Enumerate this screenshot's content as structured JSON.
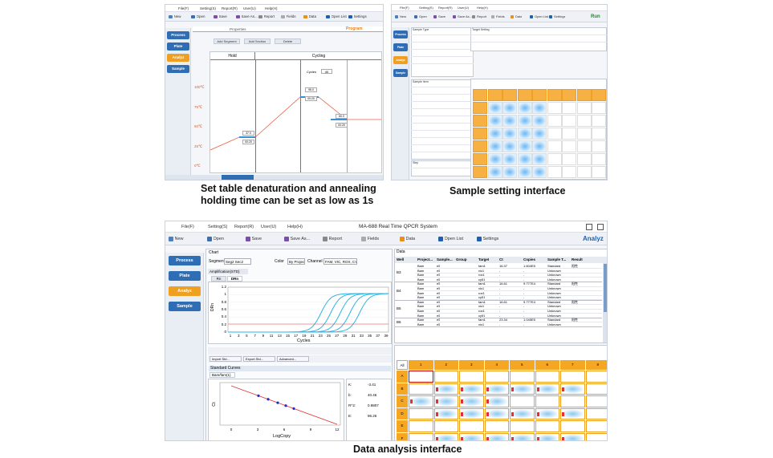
{
  "captions": {
    "program": [
      "Set table denaturation and annealing",
      "holding time can be set as low as 1s"
    ],
    "sample": "Sample setting interface",
    "analysis": "Data analysis interface"
  },
  "menu": [
    "File(F)",
    "Setting(S)",
    "Report(R)",
    "User(U)",
    "Help(H)"
  ],
  "toolbar": [
    "New",
    "Open",
    "Save",
    "Save As...",
    "Report",
    "Fields",
    "Data",
    "Open List",
    "Settings"
  ],
  "nav": [
    "Process",
    "Plate",
    "Analyz",
    "Sample"
  ],
  "program": {
    "tabs": [
      "Properties",
      "Program"
    ],
    "buttons": [
      "Add Segment",
      "Add Section",
      "Delete"
    ],
    "stages": [
      "Hold",
      "Cycling"
    ],
    "cycles_label": "Cycles",
    "cycles": "40",
    "temp_labels": [
      "100℃",
      "75℃",
      "50℃",
      "25℃",
      "0℃"
    ],
    "steps": [
      {
        "temp": "37.0",
        "time": "00:20"
      },
      {
        "temp": "95.0",
        "time": "00:20"
      },
      {
        "temp": "60.0",
        "time": "00:20"
      }
    ]
  },
  "sample_setting": {
    "run": "Run",
    "panels": [
      "Sample Type",
      "Target Setting",
      "Sample Item",
      "Step"
    ]
  },
  "analysis": {
    "title": "MA-688 Real Time QPCR System",
    "brand": "Analyz",
    "chart": {
      "heading": "Chart",
      "segment_label": "Segment",
      "segment": "Seg2 Sec2",
      "color_label": "Color",
      "color": "By Project",
      "channel_label": "Channel",
      "channel": "FAM, VIC, ROX, CY5",
      "amp_tab": "Amplification(STD)",
      "tabs": [
        "Rn",
        "DRn"
      ],
      "ylabel": "DRn",
      "yticks": [
        "0",
        "0.2",
        "0.4",
        "0.6",
        "0.8",
        "1",
        "1.2"
      ],
      "xticks": [
        "1",
        "3",
        "5",
        "7",
        "9",
        "11",
        "13",
        "15",
        "17",
        "19",
        "21",
        "23",
        "25",
        "27",
        "29",
        "31",
        "33",
        "35",
        "37",
        "39"
      ],
      "xlabel": "Cycles",
      "tools": [
        "Import Std...",
        "Export Std...",
        "Advanced..."
      ]
    },
    "std": {
      "heading": "Standard Curves",
      "tab": "Bam/fam(1)",
      "ylabel": "Ct",
      "xlabel": "LogCopy",
      "xticks": [
        "0",
        "3",
        "6",
        "9",
        "12"
      ],
      "stats": [
        [
          "K:",
          "-3.41"
        ],
        [
          "b:",
          "40.46"
        ],
        [
          "R^2:",
          "0.9807"
        ],
        [
          "E:",
          "96.26"
        ]
      ]
    },
    "table": {
      "heading": "Data",
      "headers": [
        "Well",
        "Project...",
        "Sample...",
        "Group",
        "Target",
        "Ct",
        "Copies",
        "Sample T...",
        "Result"
      ],
      "groups": [
        {
          "well": "B3",
          "rows": [
            [
              "Bam",
              "e5",
              "",
              "fam1",
              "16.37",
              "1.604E5",
              "Standard",
              "阳性"
            ],
            [
              "Bam",
              "e5",
              "",
              "vic1",
              "-",
              "-",
              "Unknown",
              ""
            ],
            [
              "Bam",
              "e5",
              "",
              "rox1",
              "-",
              "-",
              "Unknown",
              ""
            ],
            [
              "Bam",
              "e5",
              "",
              "cy51",
              "-",
              "-",
              "Unknown",
              ""
            ]
          ]
        },
        {
          "well": "B4",
          "rows": [
            [
              "Bam",
              "e5",
              "",
              "fam1",
              "16.61",
              "9.777E4",
              "Standard",
              "阳性"
            ],
            [
              "Bam",
              "e5",
              "",
              "vic1",
              "-",
              "-",
              "Unknown",
              ""
            ],
            [
              "Bam",
              "e5",
              "",
              "rox1",
              "-",
              "-",
              "Unknown",
              ""
            ],
            [
              "Bam",
              "e5",
              "",
              "cy51",
              "-",
              "-",
              "Unknown",
              ""
            ]
          ]
        },
        {
          "well": "B5",
          "rows": [
            [
              "Bam",
              "e5",
              "",
              "fam1",
              "16.61",
              "9.777E4",
              "Standard",
              "阳性"
            ],
            [
              "Bam",
              "e5",
              "",
              "vic1",
              "-",
              "-",
              "Unknown",
              ""
            ],
            [
              "Bam",
              "e5",
              "",
              "rox1",
              "-",
              "-",
              "Unknown",
              ""
            ],
            [
              "Bam",
              "e5",
              "",
              "cy51",
              "-",
              "-",
              "Unknown",
              ""
            ]
          ]
        },
        {
          "well": "B6",
          "rows": [
            [
              "Bam",
              "e5",
              "",
              "fam1",
              "23.34",
              "1.045E5",
              "Standard",
              "阳性"
            ],
            [
              "Bam",
              "e5",
              "",
              "vic1",
              "-",
              "-",
              "Unknown",
              ""
            ]
          ]
        }
      ]
    },
    "plate": {
      "all": "All",
      "columns": [
        "1",
        "2",
        "3",
        "4",
        "5",
        "6",
        "7",
        "8"
      ],
      "rows": [
        "A",
        "B",
        "C",
        "D",
        "E",
        "F"
      ]
    }
  }
}
